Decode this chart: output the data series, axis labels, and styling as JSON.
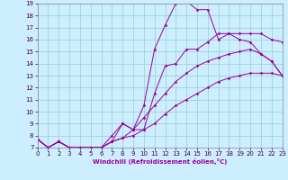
{
  "xlabel": "Windchill (Refroidissement éolien,°C)",
  "bg_color": "#cceeff",
  "line_color": "#990099",
  "grid_color": "#99cccc",
  "xlim": [
    0,
    23
  ],
  "ylim": [
    7,
    19
  ],
  "xticks": [
    0,
    1,
    2,
    3,
    4,
    5,
    6,
    7,
    8,
    9,
    10,
    11,
    12,
    13,
    14,
    15,
    16,
    17,
    18,
    19,
    20,
    21,
    22,
    23
  ],
  "yticks": [
    7,
    8,
    9,
    10,
    11,
    12,
    13,
    14,
    15,
    16,
    17,
    18,
    19
  ],
  "lines": [
    {
      "x": [
        0,
        1,
        2,
        3,
        4,
        5,
        6,
        7,
        8,
        9,
        10,
        11,
        12,
        13,
        14,
        15,
        16,
        17,
        18,
        19,
        20,
        21,
        22,
        23
      ],
      "y": [
        7.7,
        7.0,
        7.5,
        7.0,
        7.0,
        7.0,
        7.0,
        7.5,
        9.0,
        8.5,
        10.5,
        15.2,
        17.2,
        19.0,
        19.2,
        18.5,
        18.5,
        16.0,
        16.5,
        16.0,
        15.8,
        14.8,
        14.2,
        13.0
      ]
    },
    {
      "x": [
        0,
        1,
        2,
        3,
        4,
        5,
        6,
        7,
        8,
        9,
        10,
        11,
        12,
        13,
        14,
        15,
        16,
        17,
        18,
        19,
        20,
        21,
        22,
        23
      ],
      "y": [
        7.7,
        7.0,
        7.5,
        7.0,
        7.0,
        7.0,
        7.0,
        8.0,
        9.0,
        8.5,
        8.5,
        11.5,
        13.8,
        14.0,
        15.2,
        15.2,
        15.8,
        16.5,
        16.5,
        16.5,
        16.5,
        16.5,
        16.0,
        15.8
      ]
    },
    {
      "x": [
        0,
        1,
        2,
        3,
        4,
        5,
        6,
        7,
        8,
        9,
        10,
        11,
        12,
        13,
        14,
        15,
        16,
        17,
        18,
        19,
        20,
        21,
        22,
        23
      ],
      "y": [
        7.7,
        7.0,
        7.5,
        7.0,
        7.0,
        7.0,
        7.0,
        7.5,
        7.8,
        8.5,
        9.5,
        10.5,
        11.5,
        12.5,
        13.2,
        13.8,
        14.2,
        14.5,
        14.8,
        15.0,
        15.2,
        14.8,
        14.2,
        13.0
      ]
    },
    {
      "x": [
        0,
        1,
        2,
        3,
        4,
        5,
        6,
        7,
        8,
        9,
        10,
        11,
        12,
        13,
        14,
        15,
        16,
        17,
        18,
        19,
        20,
        21,
        22,
        23
      ],
      "y": [
        7.7,
        7.0,
        7.5,
        7.0,
        7.0,
        7.0,
        7.0,
        7.5,
        7.8,
        8.0,
        8.5,
        9.0,
        9.8,
        10.5,
        11.0,
        11.5,
        12.0,
        12.5,
        12.8,
        13.0,
        13.2,
        13.2,
        13.2,
        13.0
      ]
    }
  ]
}
